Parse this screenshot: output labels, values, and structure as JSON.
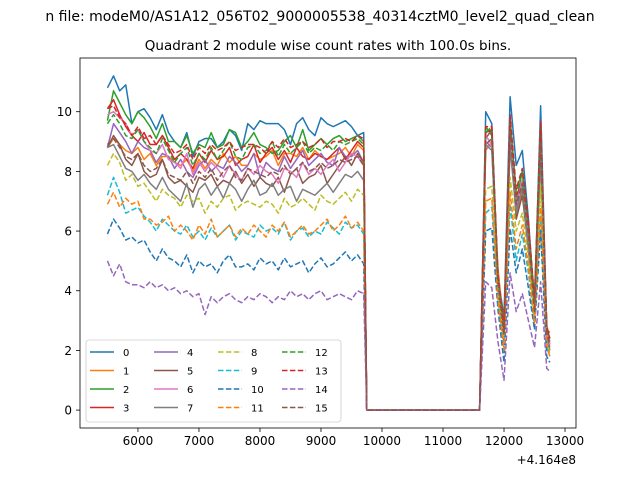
{
  "figure": {
    "suptitle": "n file: modeM0/AS1A12_056T02_9000005538_40314cztM0_level2_quad_clean"
  },
  "chart_data": {
    "type": "line",
    "title": "Quadrant 2 module wise count rates with 100.0s bins.",
    "xlabel": "",
    "ylabel": "",
    "x_offset_label": "+4.164e8",
    "xlim": [
      5050,
      13180
    ],
    "ylim": [
      -0.6,
      11.8
    ],
    "xticks": [
      6000,
      7000,
      8000,
      9000,
      10000,
      11000,
      12000,
      13000
    ],
    "yticks": [
      0,
      2,
      4,
      6,
      8,
      10
    ],
    "grid": false,
    "legend": {
      "position": "lower-left",
      "ncol": 4
    },
    "x": [
      5500,
      5600,
      5700,
      5800,
      5900,
      6000,
      6100,
      6200,
      6300,
      6400,
      6500,
      6600,
      6700,
      6800,
      6900,
      7000,
      7100,
      7200,
      7300,
      7400,
      7500,
      7600,
      7700,
      7800,
      7900,
      8000,
      8100,
      8200,
      8300,
      8400,
      8500,
      8600,
      8700,
      8800,
      8900,
      9000,
      9100,
      9200,
      9300,
      9400,
      9500,
      9600,
      9700,
      9750,
      9800,
      11600,
      11700,
      11800,
      11900,
      12000,
      12100,
      12200,
      12300,
      12400,
      12500,
      12600,
      12700,
      12750
    ],
    "series": [
      {
        "name": "0",
        "color": "#1f77b4",
        "dash": "solid",
        "values": [
          10.8,
          11.2,
          10.7,
          10.9,
          9.6,
          10.0,
          10.1,
          9.8,
          9.4,
          9.9,
          9.3,
          9.0,
          8.8,
          9.3,
          8.5,
          9.0,
          9.1,
          9.1,
          8.8,
          9.0,
          9.4,
          9.2,
          8.7,
          9.6,
          9.4,
          9.7,
          9.6,
          9.6,
          9.6,
          9.4,
          8.9,
          9.6,
          9.8,
          9.4,
          9.2,
          9.8,
          9.6,
          9.5,
          9.6,
          9.7,
          9.5,
          9.2,
          9.3,
          0.0,
          0.0,
          0.0,
          10.0,
          9.6,
          4.5,
          3.1,
          10.5,
          8.2,
          8.7,
          6.4,
          3.5,
          10.2,
          2.8,
          2.3
        ]
      },
      {
        "name": "1",
        "color": "#ff7f0e",
        "dash": "solid",
        "values": [
          8.8,
          9.1,
          8.9,
          8.7,
          8.6,
          8.8,
          8.4,
          8.6,
          8.2,
          8.5,
          8.5,
          8.3,
          8.2,
          8.4,
          8.0,
          8.4,
          8.1,
          8.4,
          8.2,
          8.6,
          8.3,
          8.5,
          8.2,
          8.2,
          8.6,
          8.4,
          8.5,
          8.7,
          8.2,
          8.6,
          8.6,
          8.5,
          8.8,
          8.4,
          8.7,
          8.5,
          8.4,
          8.5,
          8.6,
          8.8,
          8.5,
          8.9,
          8.7,
          0.0,
          0.0,
          0.0,
          8.7,
          9.0,
          4.8,
          2.6,
          9.0,
          6.5,
          7.4,
          5.6,
          3.3,
          8.4,
          2.9,
          2.2
        ]
      },
      {
        "name": "2",
        "color": "#2ca02c",
        "dash": "solid",
        "values": [
          9.7,
          10.7,
          10.3,
          9.9,
          9.6,
          10.0,
          9.8,
          9.5,
          9.1,
          9.6,
          9.0,
          9.0,
          8.8,
          9.2,
          8.6,
          8.9,
          8.8,
          9.3,
          8.8,
          8.9,
          9.4,
          9.3,
          8.8,
          9.0,
          9.3,
          8.9,
          8.8,
          8.6,
          8.7,
          9.0,
          9.2,
          8.8,
          9.4,
          8.7,
          8.9,
          9.1,
          8.9,
          9.1,
          9.2,
          9.0,
          9.1,
          9.2,
          9.0,
          0.0,
          0.0,
          0.0,
          9.5,
          9.2,
          4.4,
          2.9,
          9.8,
          7.0,
          8.0,
          6.0,
          3.8,
          9.6,
          2.7,
          2.6
        ]
      },
      {
        "name": "3",
        "color": "#d62728",
        "dash": "solid",
        "values": [
          10.1,
          10.4,
          9.9,
          9.5,
          9.2,
          9.0,
          9.3,
          8.9,
          8.9,
          9.2,
          8.8,
          8.4,
          8.6,
          8.4,
          8.1,
          8.6,
          8.3,
          8.7,
          8.4,
          8.5,
          8.8,
          8.2,
          8.4,
          8.5,
          8.9,
          8.3,
          8.6,
          8.8,
          8.4,
          8.7,
          8.3,
          8.8,
          8.5,
          8.4,
          8.6,
          8.5,
          8.4,
          8.6,
          8.8,
          8.4,
          8.7,
          9.0,
          8.8,
          0.0,
          0.0,
          0.0,
          9.3,
          9.4,
          4.3,
          2.9,
          9.5,
          7.2,
          7.6,
          6.2,
          3.5,
          9.3,
          2.8,
          2.4
        ]
      },
      {
        "name": "4",
        "color": "#9467bd",
        "dash": "solid",
        "values": [
          8.8,
          9.6,
          9.3,
          9.0,
          8.6,
          9.0,
          8.8,
          8.7,
          8.3,
          8.6,
          8.5,
          8.1,
          8.4,
          8.0,
          7.8,
          8.2,
          8.4,
          8.0,
          8.2,
          8.1,
          8.5,
          8.3,
          8.0,
          8.2,
          8.6,
          7.8,
          8.3,
          8.1,
          8.0,
          8.5,
          8.1,
          8.4,
          8.7,
          8.2,
          8.4,
          8.6,
          8.3,
          8.2,
          8.8,
          8.5,
          8.5,
          8.7,
          8.3,
          0.0,
          0.0,
          0.0,
          9.0,
          8.8,
          4.4,
          2.5,
          9.2,
          6.8,
          7.4,
          5.8,
          3.2,
          8.9,
          2.6,
          2.1
        ]
      },
      {
        "name": "5",
        "color": "#8c564b",
        "dash": "solid",
        "values": [
          8.8,
          9.2,
          8.9,
          8.4,
          8.2,
          8.6,
          8.0,
          7.8,
          7.9,
          8.4,
          7.8,
          7.6,
          7.7,
          7.5,
          7.3,
          7.8,
          7.7,
          7.9,
          7.5,
          7.7,
          7.6,
          8.0,
          7.6,
          7.9,
          7.5,
          7.8,
          7.6,
          7.5,
          7.8,
          7.3,
          7.9,
          8.1,
          7.6,
          7.8,
          7.9,
          8.2,
          7.6,
          7.9,
          8.2,
          8.5,
          8.2,
          8.6,
          8.3,
          0.0,
          0.0,
          0.0,
          9.1,
          9.4,
          4.1,
          2.3,
          9.6,
          6.4,
          7.2,
          5.4,
          3.0,
          9.2,
          2.5,
          2.0
        ]
      },
      {
        "name": "6",
        "color": "#e377c2",
        "dash": "solid",
        "values": [
          9.9,
          10.0,
          9.8,
          9.6,
          9.2,
          9.4,
          9.0,
          8.7,
          8.6,
          8.9,
          8.4,
          8.3,
          8.1,
          8.6,
          7.9,
          8.3,
          8.0,
          8.3,
          8.1,
          7.8,
          8.2,
          7.9,
          7.7,
          8.1,
          7.9,
          8.2,
          8.0,
          7.9,
          7.6,
          8.1,
          8.0,
          7.8,
          8.3,
          7.9,
          8.1,
          7.9,
          8.2,
          8.4,
          8.0,
          8.3,
          8.6,
          8.5,
          8.2,
          0.0,
          0.0,
          0.0,
          9.2,
          8.9,
          4.2,
          2.6,
          9.3,
          6.9,
          7.7,
          5.9,
          3.3,
          9.0,
          2.6,
          2.2
        ]
      },
      {
        "name": "7",
        "color": "#7f7f7f",
        "dash": "solid",
        "values": [
          8.8,
          8.9,
          8.5,
          8.1,
          8.0,
          7.7,
          7.9,
          7.6,
          7.4,
          7.8,
          7.4,
          7.2,
          7.0,
          7.6,
          6.8,
          7.4,
          7.6,
          7.2,
          7.5,
          7.1,
          7.6,
          7.4,
          7.0,
          7.4,
          7.7,
          7.2,
          7.3,
          7.6,
          7.2,
          7.4,
          7.5,
          7.0,
          7.4,
          7.3,
          7.2,
          7.4,
          7.6,
          7.3,
          7.6,
          7.9,
          7.8,
          8.0,
          7.7,
          0.0,
          0.0,
          0.0,
          8.9,
          8.7,
          4.6,
          2.4,
          8.8,
          6.6,
          7.5,
          5.4,
          3.1,
          8.5,
          2.4,
          2.0
        ]
      },
      {
        "name": "8",
        "color": "#bcbd22",
        "dash": "dashed",
        "values": [
          8.2,
          8.6,
          8.3,
          7.7,
          7.9,
          7.5,
          7.6,
          7.3,
          7.0,
          7.4,
          7.2,
          7.1,
          6.8,
          7.2,
          7.0,
          7.1,
          6.6,
          7.0,
          6.8,
          7.1,
          7.2,
          6.7,
          6.9,
          7.0,
          6.9,
          6.8,
          7.0,
          6.9,
          6.6,
          7.1,
          6.8,
          6.9,
          7.1,
          6.9,
          6.7,
          7.2,
          7.0,
          6.9,
          7.1,
          7.3,
          7.0,
          7.4,
          7.2,
          0.0,
          0.0,
          0.0,
          7.4,
          7.5,
          4.1,
          2.4,
          7.8,
          6.0,
          6.6,
          5.1,
          3.1,
          7.5,
          2.3,
          1.9
        ]
      },
      {
        "name": "9",
        "color": "#17becf",
        "dash": "dashed",
        "values": [
          7.2,
          7.8,
          7.3,
          6.6,
          6.7,
          6.8,
          6.5,
          6.3,
          6.0,
          6.4,
          6.2,
          6.0,
          5.9,
          6.2,
          5.8,
          6.0,
          5.7,
          6.1,
          5.8,
          6.0,
          6.2,
          5.7,
          6.0,
          5.9,
          5.8,
          6.2,
          6.0,
          6.1,
          5.9,
          6.3,
          5.7,
          6.0,
          6.1,
          5.8,
          6.0,
          5.9,
          6.3,
          6.1,
          5.9,
          6.3,
          6.1,
          6.2,
          5.9,
          0.0,
          0.0,
          0.0,
          6.6,
          6.8,
          3.6,
          2.0,
          6.9,
          5.0,
          5.9,
          4.6,
          2.8,
          6.5,
          2.1,
          1.8
        ]
      },
      {
        "name": "10",
        "color": "#1f77b4",
        "dash": "dashed",
        "values": [
          5.9,
          6.4,
          6.1,
          5.7,
          5.8,
          5.6,
          5.7,
          5.3,
          5.0,
          5.4,
          5.1,
          5.0,
          4.8,
          5.2,
          4.6,
          5.0,
          4.8,
          4.9,
          4.6,
          5.0,
          5.2,
          4.8,
          4.8,
          4.9,
          4.7,
          5.1,
          4.9,
          5.0,
          4.7,
          5.1,
          4.8,
          4.9,
          5.0,
          4.6,
          4.9,
          5.1,
          4.8,
          4.9,
          5.1,
          5.3,
          5.0,
          5.2,
          4.9,
          0.0,
          0.0,
          0.0,
          6.0,
          6.1,
          3.4,
          1.6,
          6.1,
          4.6,
          5.4,
          4.1,
          2.7,
          6.0,
          1.8,
          1.6
        ]
      },
      {
        "name": "11",
        "color": "#ff7f0e",
        "dash": "dashed",
        "values": [
          6.9,
          7.3,
          6.8,
          7.1,
          6.9,
          7.0,
          6.4,
          6.4,
          6.2,
          6.3,
          6.5,
          6.0,
          6.2,
          6.0,
          5.7,
          6.2,
          5.9,
          6.4,
          5.8,
          6.0,
          6.2,
          5.8,
          6.1,
          5.9,
          6.2,
          6.0,
          5.8,
          6.2,
          6.0,
          6.3,
          5.8,
          6.0,
          6.2,
          5.9,
          6.0,
          6.2,
          6.4,
          6.0,
          6.2,
          6.5,
          6.1,
          6.3,
          6.0,
          0.0,
          0.0,
          0.0,
          7.0,
          7.1,
          3.7,
          2.0,
          7.3,
          5.4,
          6.2,
          4.8,
          2.9,
          6.8,
          2.2,
          1.8
        ]
      },
      {
        "name": "12",
        "color": "#2ca02c",
        "dash": "dashed",
        "values": [
          9.6,
          9.9,
          9.6,
          9.2,
          9.1,
          9.4,
          9.0,
          8.8,
          8.6,
          9.1,
          8.7,
          8.3,
          8.6,
          8.8,
          8.2,
          8.6,
          8.4,
          8.8,
          8.4,
          8.7,
          9.0,
          8.5,
          8.4,
          8.8,
          8.9,
          8.6,
          8.7,
          9.0,
          8.5,
          8.9,
          8.6,
          8.8,
          9.0,
          8.6,
          8.8,
          8.7,
          8.9,
          8.7,
          9.0,
          8.9,
          9.0,
          9.1,
          8.9,
          0.0,
          0.0,
          0.0,
          9.3,
          9.5,
          4.4,
          2.8,
          9.7,
          7.3,
          8.0,
          6.1,
          3.6,
          9.4,
          2.7,
          2.4
        ]
      },
      {
        "name": "13",
        "color": "#d62728",
        "dash": "dashed",
        "values": [
          10.1,
          10.2,
          9.8,
          9.6,
          9.2,
          9.5,
          9.1,
          9.2,
          8.9,
          9.2,
          8.9,
          8.6,
          8.7,
          8.9,
          8.4,
          8.8,
          8.6,
          8.9,
          8.7,
          8.8,
          9.0,
          8.7,
          8.8,
          8.9,
          8.9,
          8.8,
          8.6,
          9.0,
          8.8,
          9.1,
          8.8,
          8.9,
          9.0,
          8.8,
          8.9,
          9.1,
          8.8,
          9.0,
          9.0,
          9.1,
          9.0,
          9.2,
          9.1,
          0.0,
          0.0,
          0.0,
          9.5,
          9.5,
          4.6,
          2.7,
          9.9,
          7.4,
          8.1,
          6.3,
          3.7,
          9.7,
          2.8,
          2.4
        ]
      },
      {
        "name": "14",
        "color": "#9467bd",
        "dash": "dashed",
        "values": [
          5.0,
          4.5,
          4.9,
          4.3,
          4.2,
          4.2,
          4.1,
          4.3,
          4.1,
          4.2,
          4.0,
          4.1,
          3.9,
          4.0,
          3.8,
          3.9,
          3.2,
          3.8,
          3.6,
          3.8,
          3.9,
          3.7,
          3.6,
          3.8,
          3.7,
          3.9,
          3.8,
          3.6,
          3.8,
          3.7,
          4.0,
          3.8,
          3.9,
          3.7,
          3.9,
          4.0,
          3.7,
          3.8,
          3.9,
          3.8,
          3.7,
          4.0,
          3.9,
          0.0,
          0.0,
          0.0,
          4.3,
          4.1,
          2.3,
          1.0,
          4.6,
          3.3,
          3.9,
          3.0,
          2.1,
          4.3,
          1.4,
          1.3
        ]
      },
      {
        "name": "15",
        "color": "#8c564b",
        "dash": "dashed",
        "values": [
          8.9,
          9.1,
          8.8,
          8.5,
          8.4,
          8.6,
          8.2,
          8.0,
          8.1,
          8.4,
          7.9,
          7.8,
          7.7,
          8.0,
          7.6,
          8.0,
          7.8,
          8.1,
          7.7,
          8.0,
          8.2,
          7.8,
          7.7,
          8.1,
          8.0,
          7.9,
          7.8,
          8.0,
          7.9,
          8.2,
          7.9,
          8.1,
          8.3,
          8.0,
          8.1,
          8.3,
          8.1,
          8.2,
          8.4,
          8.3,
          8.4,
          8.5,
          8.2,
          0.0,
          0.0,
          0.0,
          8.9,
          9.1,
          4.3,
          2.5,
          9.3,
          6.9,
          7.6,
          5.9,
          3.3,
          9.0,
          2.6,
          2.2
        ]
      }
    ]
  }
}
